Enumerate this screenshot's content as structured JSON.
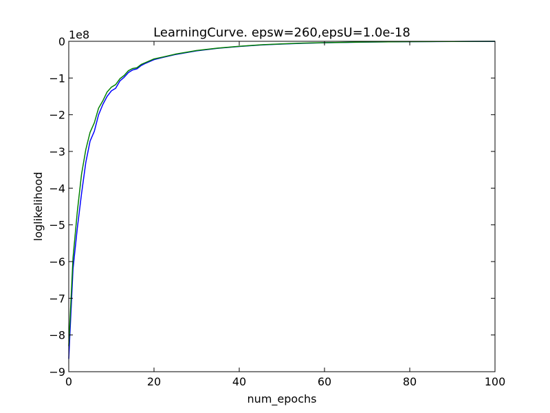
{
  "chart_data": {
    "type": "line",
    "title": "LearningCurve. epsw=260,epsU=1.0e-18",
    "xlabel": "num_epochs",
    "ylabel": "loglikelihood",
    "y_offset_label": "1e8",
    "xlim": [
      0,
      100
    ],
    "ylim": [
      -9,
      0
    ],
    "y_unit_scale": 100000000,
    "xticks": [
      0,
      20,
      40,
      60,
      80,
      100
    ],
    "yticks": [
      0,
      -1,
      -2,
      -3,
      -4,
      -5,
      -6,
      -7,
      -8,
      -9
    ],
    "xtick_labels": [
      "0",
      "20",
      "40",
      "60",
      "80",
      "100"
    ],
    "ytick_labels": [
      "0",
      "−1",
      "−2",
      "−3",
      "−4",
      "−5",
      "−6",
      "−7",
      "−8",
      "−9"
    ],
    "grid": false,
    "legend": false,
    "series": [
      {
        "color": "#0000ff",
        "x": [
          0,
          1,
          2,
          3,
          4,
          5,
          6,
          7,
          8,
          9,
          10,
          11,
          12,
          13,
          14,
          15,
          16,
          17,
          18,
          20,
          22,
          25,
          28,
          30,
          35,
          40,
          45,
          50,
          55,
          60,
          65,
          70,
          75,
          80,
          85,
          90,
          95,
          100
        ],
        "y": [
          -8.65,
          -6.2,
          -5.1,
          -4.15,
          -3.3,
          -2.72,
          -2.45,
          -2.0,
          -1.72,
          -1.5,
          -1.35,
          -1.28,
          -1.08,
          -0.98,
          -0.85,
          -0.78,
          -0.75,
          -0.66,
          -0.6,
          -0.5,
          -0.44,
          -0.36,
          -0.3,
          -0.26,
          -0.19,
          -0.14,
          -0.1,
          -0.075,
          -0.055,
          -0.04,
          -0.03,
          -0.02,
          -0.015,
          -0.01,
          -0.007,
          -0.005,
          -0.003,
          -0.002
        ]
      },
      {
        "color": "#008000",
        "x": [
          0,
          1,
          2,
          3,
          4,
          5,
          6,
          7,
          8,
          9,
          10,
          11,
          12,
          13,
          14,
          15,
          16,
          17,
          18,
          20,
          22,
          25,
          28,
          30,
          35,
          40,
          45,
          50,
          55,
          60,
          65,
          70,
          75,
          80,
          85,
          90,
          95,
          100
        ],
        "y": [
          -8.3,
          -5.9,
          -4.65,
          -3.62,
          -2.95,
          -2.48,
          -2.22,
          -1.82,
          -1.62,
          -1.38,
          -1.25,
          -1.18,
          -1.02,
          -0.93,
          -0.8,
          -0.74,
          -0.72,
          -0.63,
          -0.58,
          -0.48,
          -0.43,
          -0.35,
          -0.29,
          -0.25,
          -0.185,
          -0.135,
          -0.095,
          -0.07,
          -0.05,
          -0.037,
          -0.027,
          -0.018,
          -0.013,
          -0.009,
          -0.006,
          -0.004,
          -0.002,
          -0.001
        ]
      }
    ]
  }
}
